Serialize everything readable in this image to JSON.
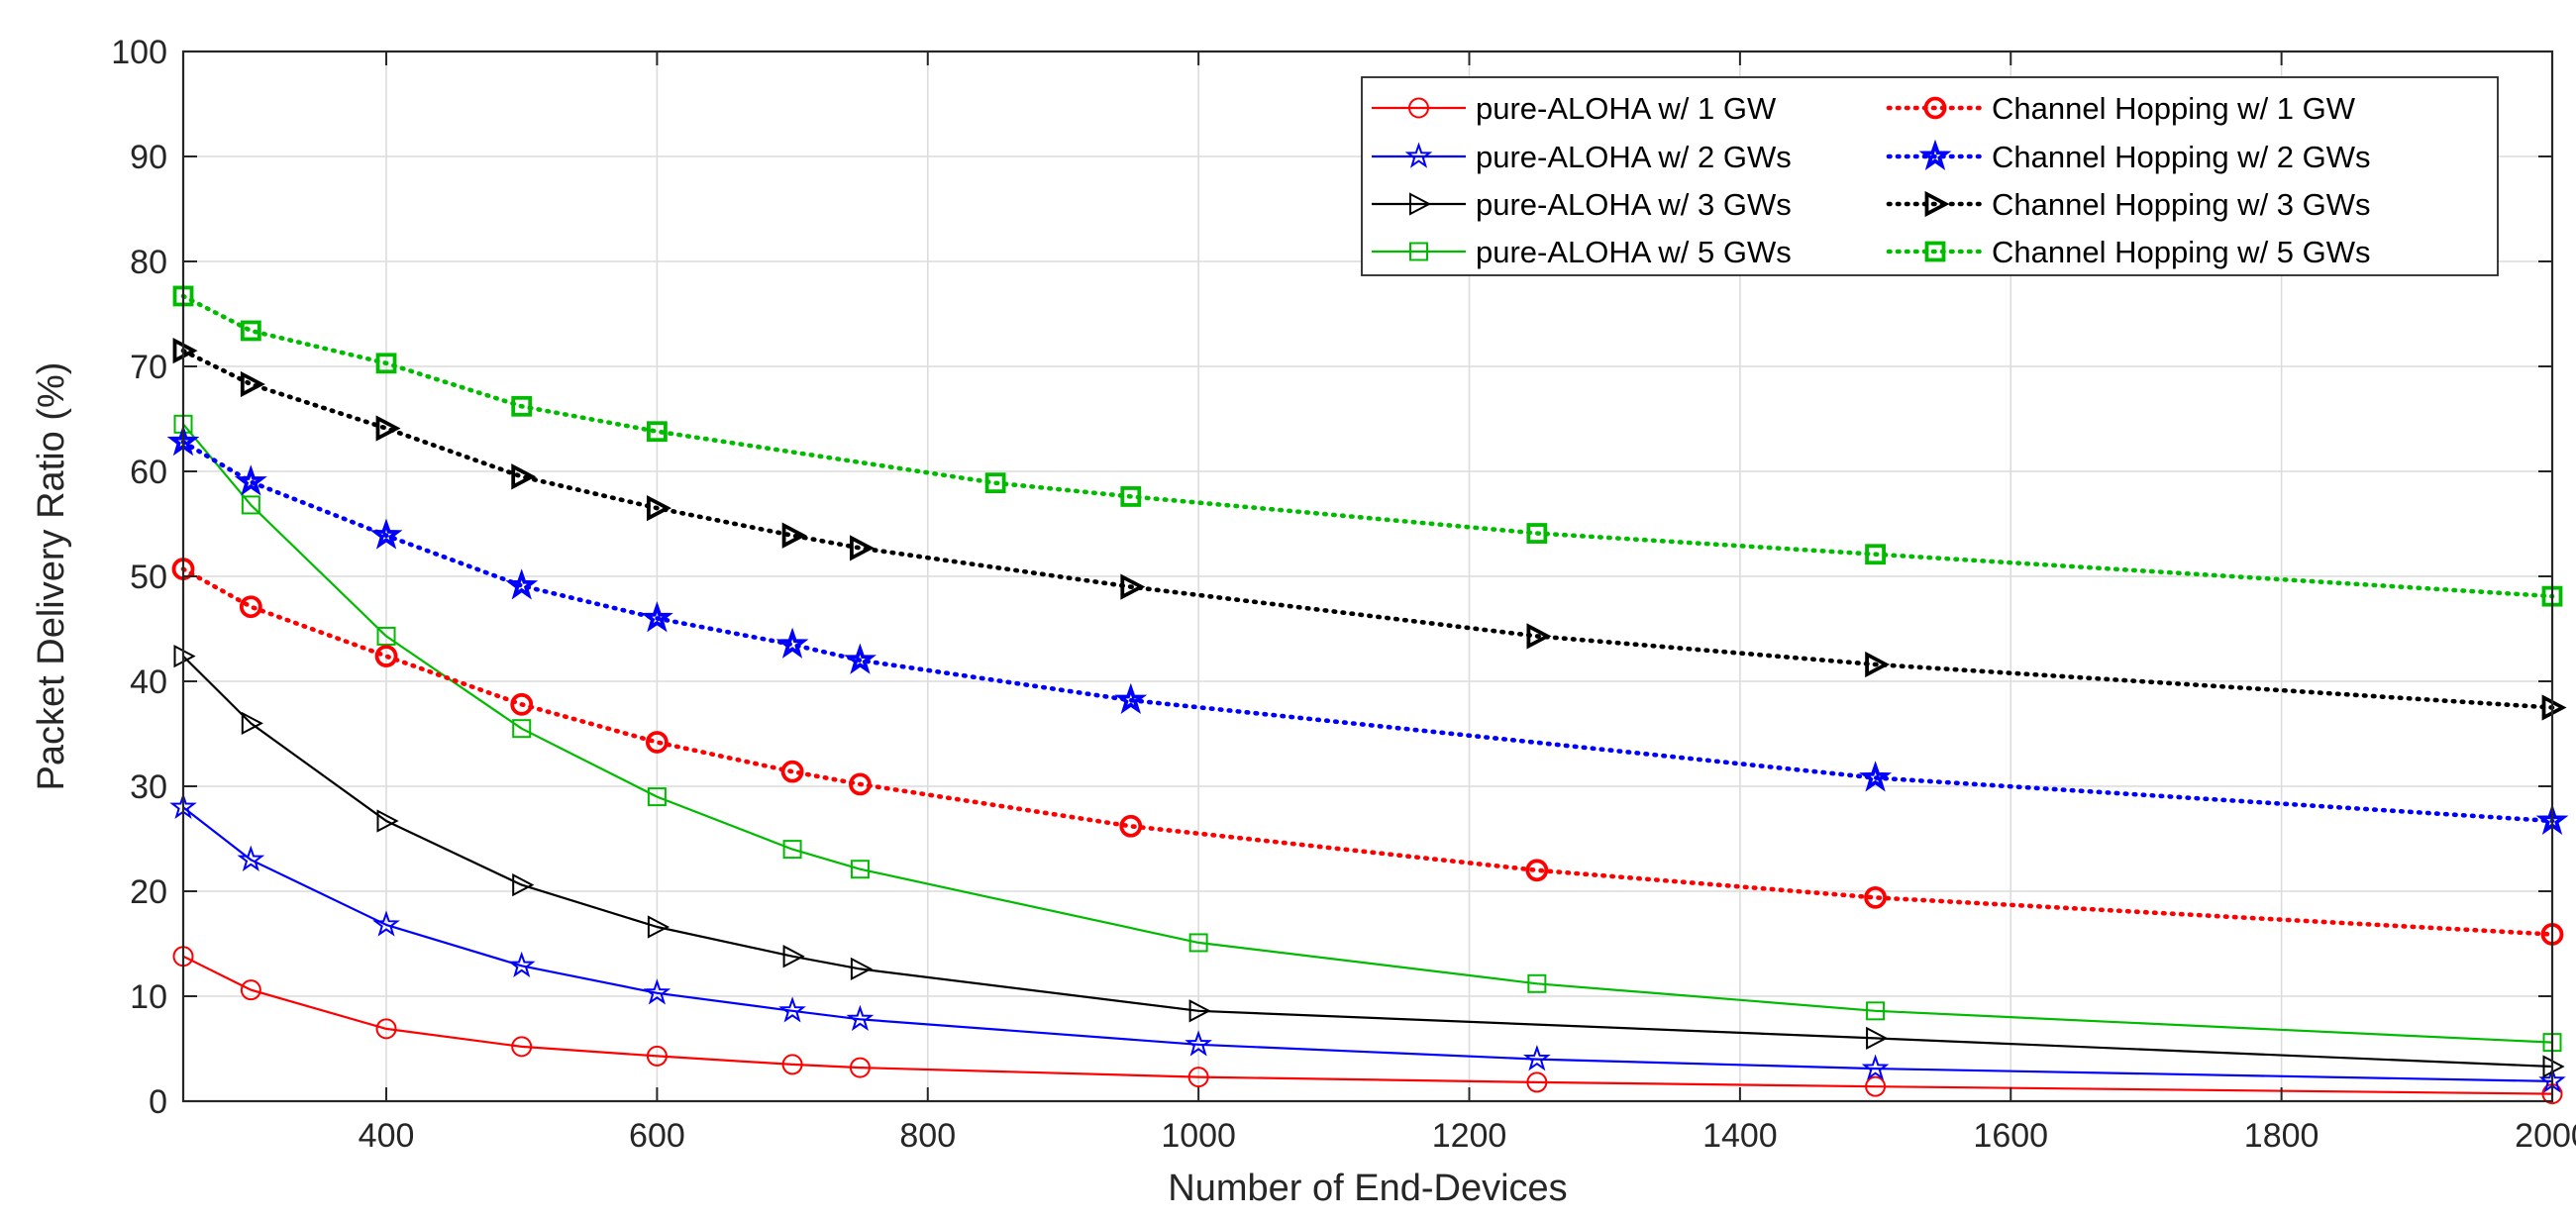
{
  "chart_data": {
    "type": "line",
    "title": "",
    "xlabel": "Number of End-Devices",
    "ylabel": "Packet Delivery Ratio (%)",
    "xlim": [
      250,
      2000
    ],
    "ylim": [
      0,
      100
    ],
    "xticks": [
      400,
      600,
      800,
      1000,
      1200,
      1400,
      1600,
      1800,
      2000
    ],
    "yticks": [
      0,
      10,
      20,
      30,
      40,
      50,
      60,
      70,
      80,
      90,
      100
    ],
    "grid": true,
    "legend_position": "top-right",
    "legend_columns": 2,
    "series": [
      {
        "name": "pure-ALOHA w/ 1 GW",
        "color": "#ff0000",
        "style": "solid",
        "marker": "circle",
        "x": [
          250,
          300,
          400,
          500,
          600,
          700,
          750,
          1000,
          1250,
          1500,
          2000
        ],
        "values": [
          13.8,
          10.6,
          6.9,
          5.2,
          4.3,
          3.5,
          3.2,
          2.3,
          1.8,
          1.4,
          0.7
        ]
      },
      {
        "name": "pure-ALOHA w/ 2 GWs",
        "color": "#0000ff",
        "style": "solid",
        "marker": "star",
        "x": [
          250,
          300,
          400,
          500,
          600,
          700,
          750,
          1000,
          1250,
          1500,
          2000
        ],
        "values": [
          28.0,
          23.0,
          16.8,
          12.9,
          10.3,
          8.6,
          7.8,
          5.4,
          4.0,
          3.1,
          1.9
        ]
      },
      {
        "name": "pure-ALOHA w/ 3 GWs",
        "color": "#000000",
        "style": "solid",
        "marker": "triangle-right",
        "x": [
          250,
          300,
          400,
          500,
          600,
          700,
          750,
          1000,
          1500,
          2000
        ],
        "values": [
          42.4,
          36.0,
          26.7,
          20.6,
          16.6,
          13.8,
          12.6,
          8.6,
          6.0,
          3.3
        ]
      },
      {
        "name": "pure-ALOHA w/ 5 GWs",
        "color": "#00bb00",
        "style": "solid",
        "marker": "square",
        "x": [
          250,
          300,
          400,
          500,
          600,
          700,
          750,
          1000,
          1250,
          1500,
          2000
        ],
        "values": [
          64.5,
          56.8,
          44.3,
          35.5,
          29.0,
          24.0,
          22.1,
          15.1,
          11.2,
          8.6,
          5.6
        ]
      },
      {
        "name": "Channel Hopping w/ 1 GW",
        "color": "#ff0000",
        "style": "dotted",
        "marker": "circle",
        "x": [
          250,
          300,
          400,
          500,
          600,
          700,
          750,
          950,
          1250,
          1500,
          2000
        ],
        "values": [
          50.7,
          47.1,
          42.4,
          37.8,
          34.2,
          31.4,
          30.2,
          26.2,
          22.0,
          19.4,
          15.9
        ]
      },
      {
        "name": "Channel Hopping w/ 2 GWs",
        "color": "#0000ff",
        "style": "dotted",
        "marker": "star",
        "x": [
          250,
          300,
          400,
          500,
          600,
          700,
          750,
          950,
          1500,
          2000
        ],
        "values": [
          62.8,
          59.0,
          53.9,
          49.1,
          46.0,
          43.5,
          42.0,
          38.2,
          30.8,
          26.7
        ]
      },
      {
        "name": "Channel Hopping w/ 3 GWs",
        "color": "#000000",
        "style": "dotted",
        "marker": "triangle-right",
        "x": [
          250,
          300,
          400,
          500,
          600,
          700,
          750,
          950,
          1250,
          1500,
          2000
        ],
        "values": [
          71.5,
          68.3,
          64.1,
          59.5,
          56.5,
          53.9,
          52.7,
          49.0,
          44.3,
          41.6,
          37.5
        ]
      },
      {
        "name": "Channel Hopping w/ 5 GWs",
        "color": "#00bb00",
        "style": "dotted",
        "marker": "square",
        "x": [
          250,
          300,
          400,
          500,
          600,
          850,
          950,
          1250,
          1500,
          2000
        ],
        "values": [
          76.7,
          73.4,
          70.3,
          66.2,
          63.8,
          58.9,
          57.6,
          54.1,
          52.1,
          48.1
        ]
      }
    ]
  }
}
